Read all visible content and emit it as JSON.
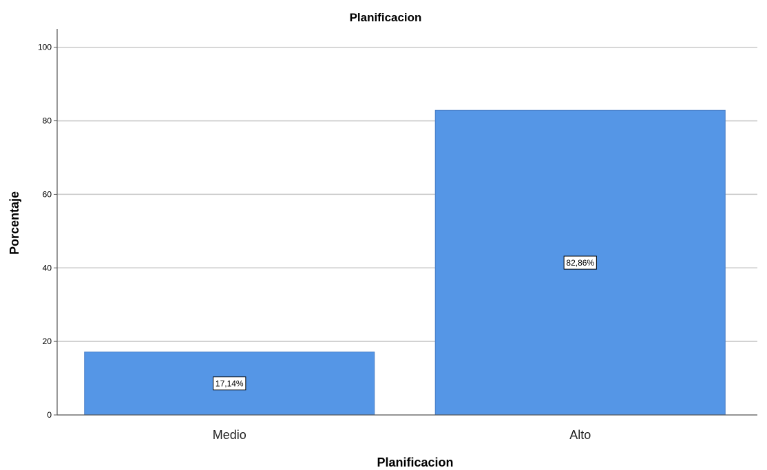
{
  "chart_data": {
    "type": "bar",
    "title": "Planificacion",
    "xlabel": "Planificacion",
    "ylabel": "Porcentaje",
    "categories": [
      "Medio",
      "Alto"
    ],
    "values": [
      17.14,
      82.86
    ],
    "data_labels": [
      "17,14%",
      "82,86%"
    ],
    "ylim": [
      0,
      105
    ],
    "yticks": [
      0,
      20,
      40,
      60,
      80,
      100
    ],
    "grid": true,
    "bar_color": "#5596E6",
    "bar_edge_color": "#4a7fc6",
    "grid_color": "#c8c8c8",
    "axis_color": "#555555",
    "legend": "none"
  }
}
